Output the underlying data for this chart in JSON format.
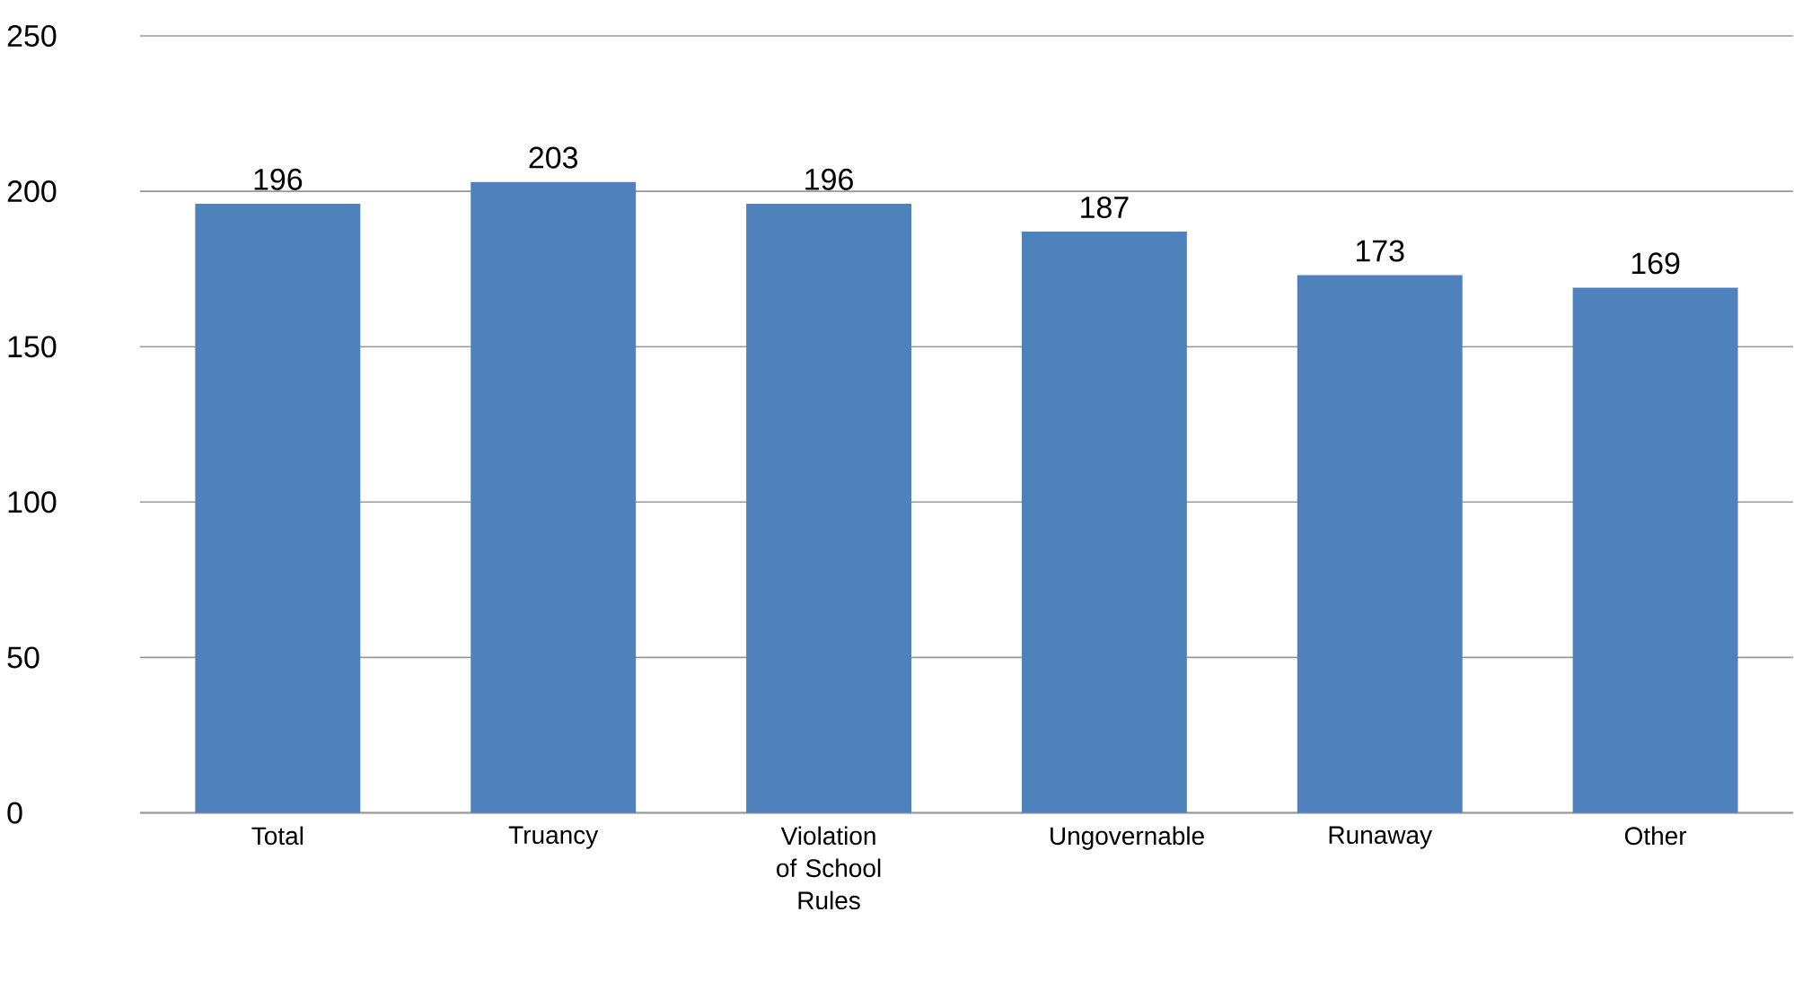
{
  "chart_data": {
    "type": "bar",
    "categories": [
      "Total",
      "Truancy",
      "Violation of School Rules",
      "Ungovernable",
      "Runaway",
      "Other"
    ],
    "values": [
      196,
      203,
      196,
      187,
      173,
      169
    ],
    "color": "#4f81bd",
    "ylim": [
      0,
      250
    ],
    "yticks": [
      0,
      50,
      100,
      150,
      200,
      250
    ],
    "grid": "y",
    "data_labels": true
  }
}
